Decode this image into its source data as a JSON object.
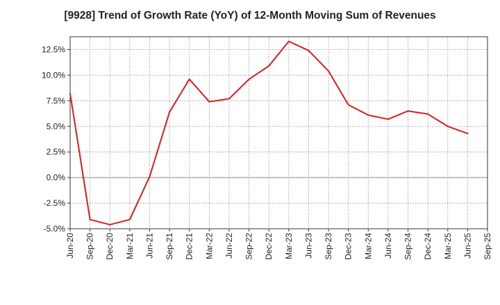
{
  "title": "[9928]  Trend of Growth Rate (YoY) of 12-Month Moving Sum of Revenues",
  "colors": {
    "line": "#e31a1c",
    "grid": "#888888",
    "zero_line": "#888888",
    "axis": "#333333",
    "background": "#ffffff"
  },
  "chart_data": {
    "type": "line",
    "title": "[9928]  Trend of Growth Rate (YoY) of 12-Month Moving Sum of Revenues",
    "xlabel": "",
    "ylabel": "",
    "ylim": [
      -5.0,
      13.75
    ],
    "grid": true,
    "legend": "none",
    "x_tick_labels": [
      "Jun-20",
      "Sep-20",
      "Dec-20",
      "Mar-21",
      "Jun-21",
      "Sep-21",
      "Dec-21",
      "Mar-22",
      "Jun-22",
      "Sep-22",
      "Dec-22",
      "Mar-23",
      "Jun-23",
      "Sep-23",
      "Dec-23",
      "Mar-24",
      "Jun-24",
      "Sep-24",
      "Dec-24",
      "Mar-25",
      "Jun-25",
      "Sep-25"
    ],
    "y_ticks": [
      -5.0,
      -2.5,
      0.0,
      2.5,
      5.0,
      7.5,
      10.0,
      12.5
    ],
    "y_tick_labels": [
      "-5.0%",
      "-2.5%",
      "0.0%",
      "2.5%",
      "5.0%",
      "7.5%",
      "10.0%",
      "12.5%"
    ],
    "series": [
      {
        "x": [
          "Jun-20",
          "Sep-20",
          "Dec-20",
          "Mar-21",
          "Jun-21",
          "Sep-21",
          "Dec-21",
          "Mar-22",
          "Jun-22",
          "Sep-22",
          "Dec-22",
          "Mar-23",
          "Jun-23",
          "Sep-23",
          "Dec-23",
          "Mar-24",
          "Jun-24",
          "Sep-24",
          "Dec-24",
          "Mar-25",
          "Jun-25"
        ],
        "values": [
          8.2,
          -4.1,
          -4.6,
          -4.1,
          0.1,
          6.4,
          9.6,
          7.4,
          7.7,
          9.6,
          10.9,
          13.3,
          12.4,
          10.4,
          7.1,
          6.1,
          5.7,
          6.5,
          6.2,
          5.0,
          4.3
        ]
      }
    ]
  }
}
